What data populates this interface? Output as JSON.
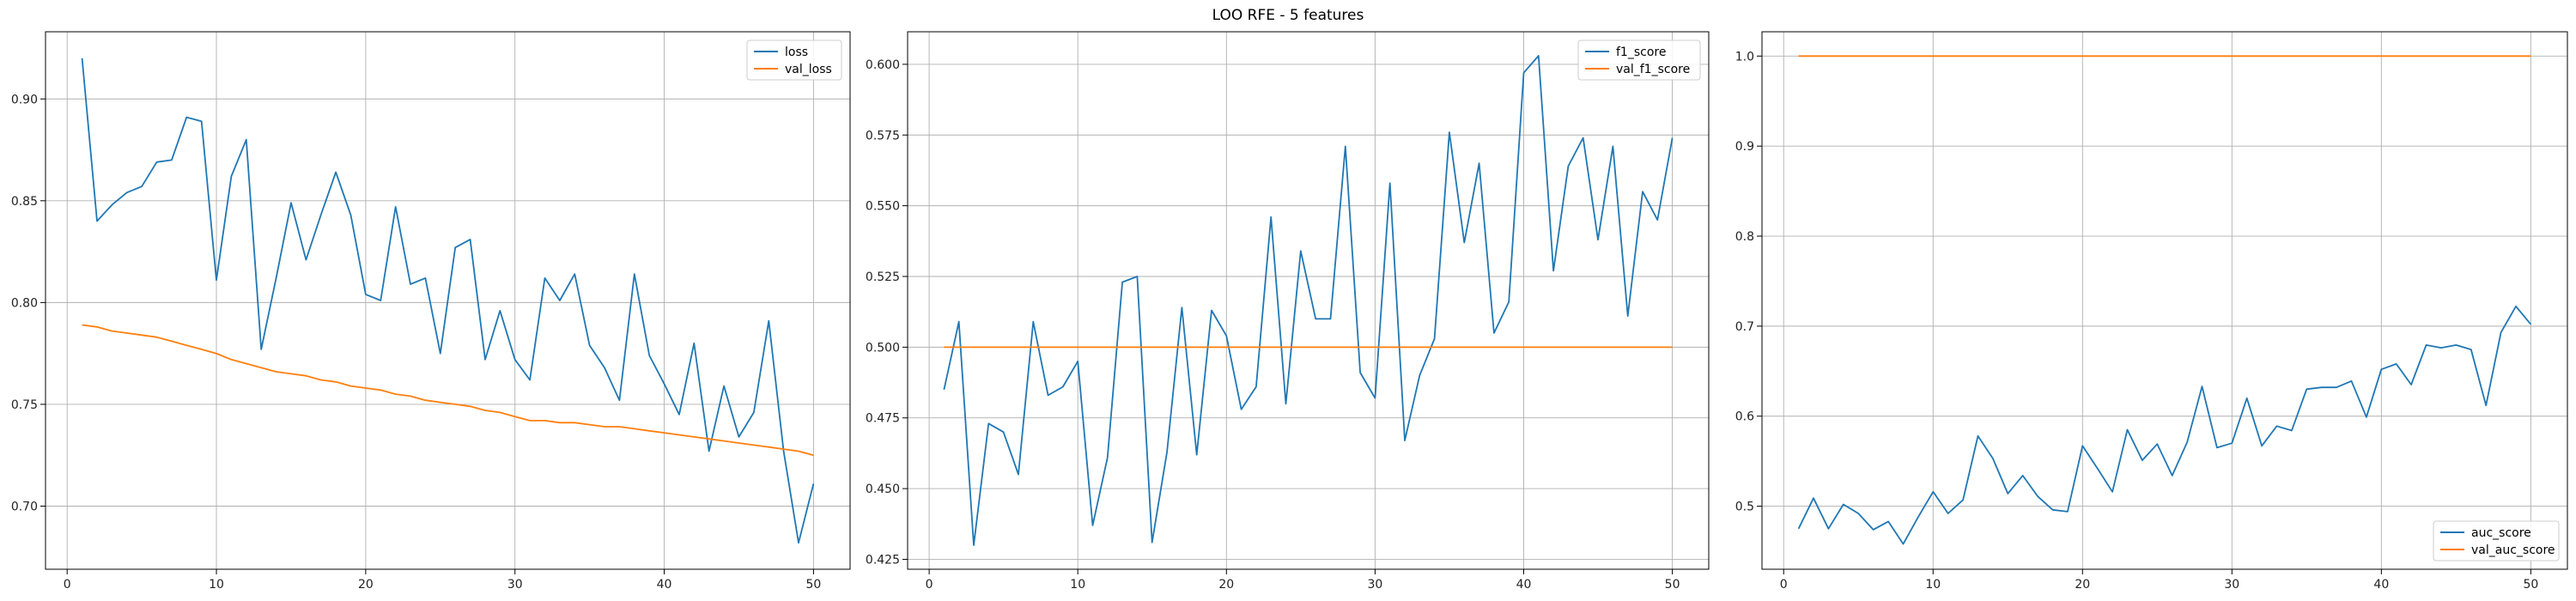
{
  "figure": {
    "title": "LOO RFE - 5 features",
    "colors": {
      "series1": "#1f77b4",
      "series2": "#ff7f0e",
      "grid": "#b0b0b0",
      "axis": "#000000"
    }
  },
  "chart_data": [
    {
      "type": "line",
      "title": "",
      "xlabel": "",
      "ylabel": "",
      "xlim": [
        -1.45,
        52.45
      ],
      "ylim": [
        0.669,
        0.933
      ],
      "xticks": [
        0,
        10,
        20,
        30,
        40,
        50
      ],
      "yticks": [
        0.7,
        0.75,
        0.8,
        0.85,
        0.9
      ],
      "ytick_labels": [
        "0.70",
        "0.75",
        "0.80",
        "0.85",
        "0.90"
      ],
      "grid": true,
      "legend_position": "top-right",
      "x": [
        1,
        2,
        3,
        4,
        5,
        6,
        7,
        8,
        9,
        10,
        11,
        12,
        13,
        14,
        15,
        16,
        17,
        18,
        19,
        20,
        21,
        22,
        23,
        24,
        25,
        26,
        27,
        28,
        29,
        30,
        31,
        32,
        33,
        34,
        35,
        36,
        37,
        38,
        39,
        40,
        41,
        42,
        43,
        44,
        45,
        46,
        47,
        48,
        49,
        50
      ],
      "series": [
        {
          "name": "loss",
          "color": "#1f77b4",
          "values": [
            0.92,
            0.84,
            0.848,
            0.854,
            0.857,
            0.869,
            0.87,
            0.891,
            0.889,
            0.811,
            0.862,
            0.88,
            0.777,
            0.812,
            0.849,
            0.821,
            0.843,
            0.864,
            0.843,
            0.804,
            0.801,
            0.847,
            0.809,
            0.812,
            0.775,
            0.827,
            0.831,
            0.772,
            0.796,
            0.772,
            0.762,
            0.812,
            0.801,
            0.814,
            0.779,
            0.768,
            0.752,
            0.814,
            0.774,
            0.76,
            0.745,
            0.78,
            0.727,
            0.759,
            0.734,
            0.746,
            0.791,
            0.727,
            0.682,
            0.711
          ]
        },
        {
          "name": "val_loss",
          "color": "#ff7f0e",
          "values": [
            0.789,
            0.788,
            0.786,
            0.785,
            0.784,
            0.783,
            0.781,
            0.779,
            0.777,
            0.775,
            0.772,
            0.77,
            0.768,
            0.766,
            0.765,
            0.764,
            0.762,
            0.761,
            0.759,
            0.758,
            0.757,
            0.755,
            0.754,
            0.752,
            0.751,
            0.75,
            0.749,
            0.747,
            0.746,
            0.744,
            0.742,
            0.742,
            0.741,
            0.741,
            0.74,
            0.739,
            0.739,
            0.738,
            0.737,
            0.736,
            0.735,
            0.734,
            0.733,
            0.732,
            0.731,
            0.73,
            0.729,
            0.728,
            0.727,
            0.725
          ]
        }
      ]
    },
    {
      "type": "line",
      "title": "",
      "xlabel": "",
      "ylabel": "",
      "xlim": [
        -1.45,
        52.45
      ],
      "ylim": [
        0.4215,
        0.6115
      ],
      "xticks": [
        0,
        10,
        20,
        30,
        40,
        50
      ],
      "yticks": [
        0.425,
        0.45,
        0.475,
        0.5,
        0.525,
        0.55,
        0.575,
        0.6
      ],
      "ytick_labels": [
        "0.425",
        "0.450",
        "0.475",
        "0.500",
        "0.525",
        "0.550",
        "0.575",
        "0.600"
      ],
      "grid": true,
      "legend_position": "top-right",
      "x": [
        1,
        2,
        3,
        4,
        5,
        6,
        7,
        8,
        9,
        10,
        11,
        12,
        13,
        14,
        15,
        16,
        17,
        18,
        19,
        20,
        21,
        22,
        23,
        24,
        25,
        26,
        27,
        28,
        29,
        30,
        31,
        32,
        33,
        34,
        35,
        36,
        37,
        38,
        39,
        40,
        41,
        42,
        43,
        44,
        45,
        46,
        47,
        48,
        49,
        50
      ],
      "series": [
        {
          "name": "f1_score",
          "color": "#1f77b4",
          "values": [
            0.485,
            0.509,
            0.43,
            0.473,
            0.47,
            0.455,
            0.509,
            0.483,
            0.486,
            0.495,
            0.437,
            0.461,
            0.523,
            0.525,
            0.431,
            0.463,
            0.514,
            0.462,
            0.513,
            0.504,
            0.478,
            0.486,
            0.546,
            0.48,
            0.534,
            0.51,
            0.51,
            0.571,
            0.491,
            0.482,
            0.558,
            0.467,
            0.49,
            0.503,
            0.576,
            0.537,
            0.565,
            0.505,
            0.516,
            0.597,
            0.603,
            0.527,
            0.564,
            0.574,
            0.538,
            0.571,
            0.511,
            0.555,
            0.545,
            0.574
          ]
        },
        {
          "name": "val_f1_score",
          "color": "#ff7f0e",
          "values": [
            0.5,
            0.5,
            0.5,
            0.5,
            0.5,
            0.5,
            0.5,
            0.5,
            0.5,
            0.5,
            0.5,
            0.5,
            0.5,
            0.5,
            0.5,
            0.5,
            0.5,
            0.5,
            0.5,
            0.5,
            0.5,
            0.5,
            0.5,
            0.5,
            0.5,
            0.5,
            0.5,
            0.5,
            0.5,
            0.5,
            0.5,
            0.5,
            0.5,
            0.5,
            0.5,
            0.5,
            0.5,
            0.5,
            0.5,
            0.5,
            0.5,
            0.5,
            0.5,
            0.5,
            0.5,
            0.5,
            0.5,
            0.5,
            0.5,
            0.5
          ]
        }
      ]
    },
    {
      "type": "line",
      "title": "",
      "xlabel": "",
      "ylabel": "",
      "xlim": [
        -1.45,
        52.45
      ],
      "ylim": [
        0.43,
        1.027
      ],
      "xticks": [
        0,
        10,
        20,
        30,
        40,
        50
      ],
      "yticks": [
        0.5,
        0.6,
        0.7,
        0.8,
        0.9,
        1.0
      ],
      "ytick_labels": [
        "0.5",
        "0.6",
        "0.7",
        "0.8",
        "0.9",
        "1.0"
      ],
      "grid": true,
      "legend_position": "bottom-right",
      "x": [
        1,
        2,
        3,
        4,
        5,
        6,
        7,
        8,
        9,
        10,
        11,
        12,
        13,
        14,
        15,
        16,
        17,
        18,
        19,
        20,
        21,
        22,
        23,
        24,
        25,
        26,
        27,
        28,
        29,
        30,
        31,
        32,
        33,
        34,
        35,
        36,
        37,
        38,
        39,
        40,
        41,
        42,
        43,
        44,
        45,
        46,
        47,
        48,
        49,
        50
      ],
      "series": [
        {
          "name": "auc_score",
          "color": "#1f77b4",
          "values": [
            0.475,
            0.509,
            0.475,
            0.502,
            0.492,
            0.474,
            0.483,
            0.458,
            0.488,
            0.516,
            0.492,
            0.507,
            0.578,
            0.553,
            0.514,
            0.534,
            0.511,
            0.496,
            0.494,
            0.567,
            0.542,
            0.516,
            0.585,
            0.551,
            0.569,
            0.534,
            0.571,
            0.633,
            0.565,
            0.57,
            0.62,
            0.567,
            0.589,
            0.584,
            0.63,
            0.632,
            0.632,
            0.639,
            0.599,
            0.652,
            0.658,
            0.635,
            0.679,
            0.676,
            0.679,
            0.674,
            0.612,
            0.693,
            0.722,
            0.702
          ]
        },
        {
          "name": "val_auc_score",
          "color": "#ff7f0e",
          "values": [
            1.0,
            1.0,
            1.0,
            1.0,
            1.0,
            1.0,
            1.0,
            1.0,
            1.0,
            1.0,
            1.0,
            1.0,
            1.0,
            1.0,
            1.0,
            1.0,
            1.0,
            1.0,
            1.0,
            1.0,
            1.0,
            1.0,
            1.0,
            1.0,
            1.0,
            1.0,
            1.0,
            1.0,
            1.0,
            1.0,
            1.0,
            1.0,
            1.0,
            1.0,
            1.0,
            1.0,
            1.0,
            1.0,
            1.0,
            1.0,
            1.0,
            1.0,
            1.0,
            1.0,
            1.0,
            1.0,
            1.0,
            1.0,
            1.0,
            1.0
          ]
        }
      ]
    }
  ]
}
